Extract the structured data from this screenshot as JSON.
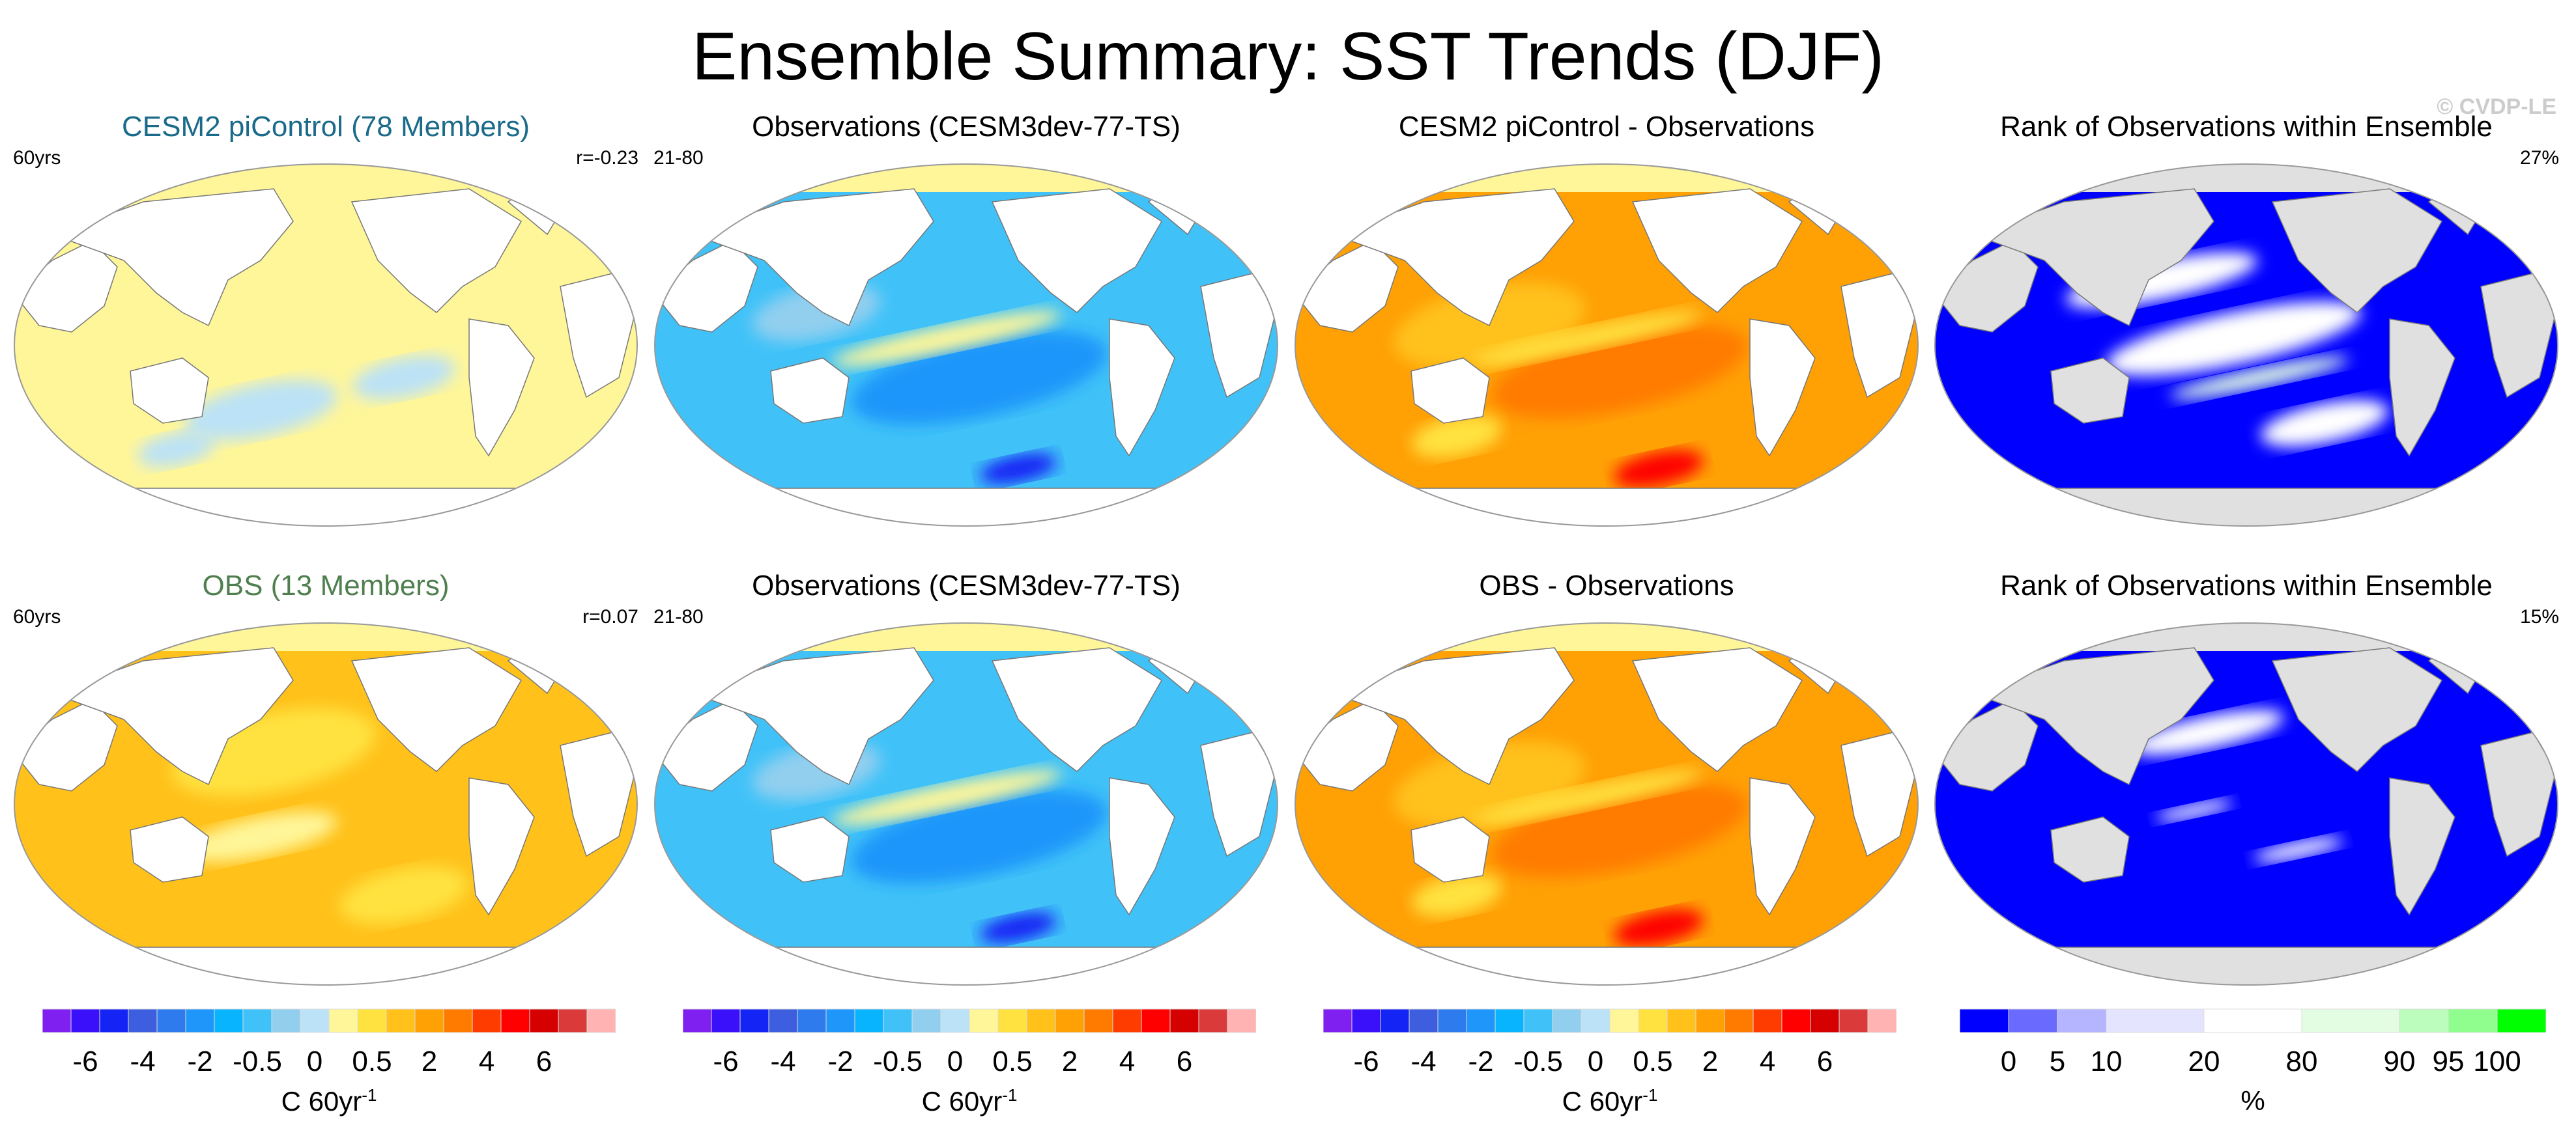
{
  "title": "Ensemble Summary: SST Trends (DJF)",
  "credit": "© CVDP-LE",
  "panels": [
    {
      "title": "CESM2 piControl (78 Members)",
      "title_color": "#1a6a8a",
      "left": "60yrs",
      "right": "r=-0.23",
      "style": "model_pic"
    },
    {
      "title": "Observations (CESM3dev-77-TS)",
      "title_color": "#000000",
      "left": "21-80",
      "right": "",
      "style": "obs"
    },
    {
      "title": "CESM2 piControl - Observations",
      "title_color": "#000000",
      "left": "",
      "right": "",
      "style": "diff"
    },
    {
      "title": "Rank of Observations within Ensemble",
      "title_color": "#000000",
      "left": "",
      "right": "27%",
      "style": "rank1"
    },
    {
      "title": "OBS (13 Members)",
      "title_color": "#4f7f4f",
      "left": "60yrs",
      "right": "r=0.07",
      "style": "model_obs"
    },
    {
      "title": "Observations (CESM3dev-77-TS)",
      "title_color": "#000000",
      "left": "21-80",
      "right": "",
      "style": "obs"
    },
    {
      "title": "OBS - Observations",
      "title_color": "#000000",
      "left": "",
      "right": "",
      "style": "diff"
    },
    {
      "title": "Rank of Observations within Ensemble",
      "title_color": "#000000",
      "left": "",
      "right": "15%",
      "style": "rank2"
    }
  ],
  "chart_data": {
    "type": "heatmap",
    "title": "Ensemble Summary: SST Trends (DJF)",
    "trend_colorbar": {
      "unit": "C 60yr",
      "unit_sup": "-1",
      "ticks": [
        "-6",
        "-4",
        "-2",
        "-0.5",
        "0",
        "0.5",
        "2",
        "4",
        "6"
      ],
      "colors": [
        "#8020f0",
        "#3a10fa",
        "#1424f5",
        "#3d5fdf",
        "#2e7bed",
        "#1e96fa",
        "#09b4fe",
        "#40c2f8",
        "#92cfef",
        "#bbe2f6",
        "#fff69a",
        "#ffe23f",
        "#ffc11a",
        "#ffa005",
        "#ff7b00",
        "#ff3c00",
        "#fe0000",
        "#d50000",
        "#db3a3a",
        "#ffb3b3"
      ]
    },
    "rank_colorbar": {
      "unit": "%",
      "ticks": [
        "0",
        "5",
        "10",
        "20",
        "80",
        "90",
        "95",
        "100"
      ],
      "colors": [
        "#0000ff",
        "#6a6aff",
        "#b4b4ff",
        "#e4e4fe",
        "#ffffff",
        "#e2fde2",
        "#bcfcbc",
        "#8ffe8f",
        "#00ff00"
      ],
      "widths": [
        1,
        1,
        1,
        2,
        2,
        2,
        1,
        1,
        1
      ]
    }
  }
}
